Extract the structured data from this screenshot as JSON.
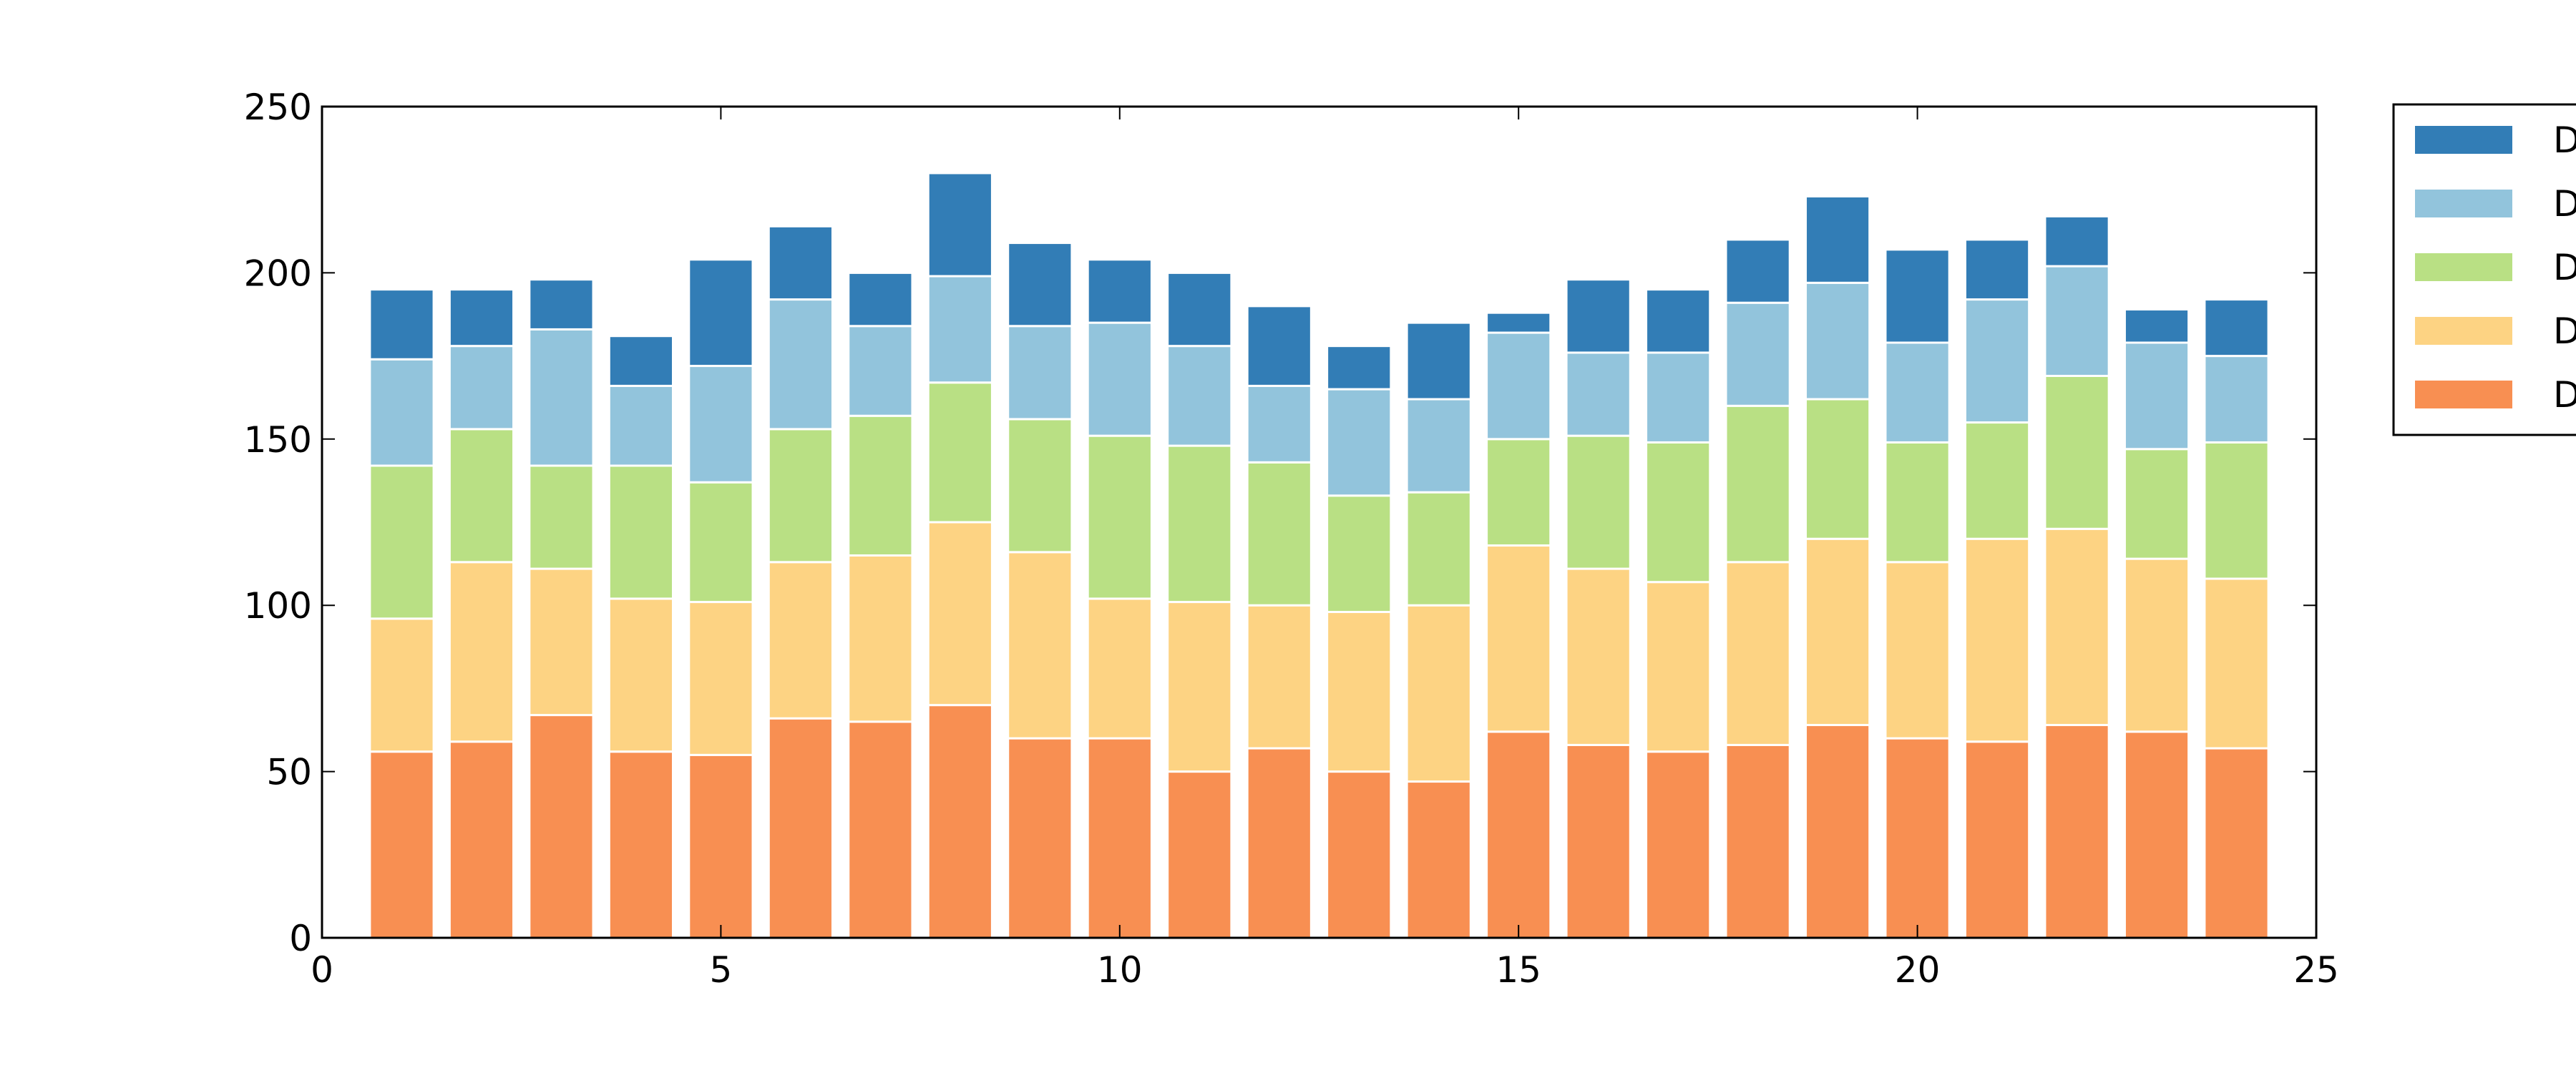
{
  "chart_data": {
    "type": "bar",
    "stacked": true,
    "title": "",
    "xlabel": "",
    "ylabel": "",
    "xlim": [
      0,
      25
    ],
    "ylim": [
      0,
      250
    ],
    "xticks": [
      "0",
      "5",
      "10",
      "15",
      "20",
      "25"
    ],
    "yticks": [
      "0",
      "50",
      "100",
      "150",
      "200",
      "250"
    ],
    "grid": false,
    "legend_position": "outside-right",
    "x": [
      1,
      2,
      3,
      4,
      5,
      6,
      7,
      8,
      9,
      10,
      11,
      12,
      13,
      14,
      15,
      16,
      17,
      18,
      19,
      20,
      21,
      22,
      23,
      24
    ],
    "series": [
      {
        "name": "D",
        "color": "#f88f52",
        "values": [
          56,
          59,
          67,
          56,
          55,
          66,
          65,
          70,
          60,
          60,
          50,
          57,
          50,
          47,
          62,
          58,
          56,
          58,
          64,
          60,
          59,
          64,
          62,
          57
        ]
      },
      {
        "name": "D",
        "color": "#fdd383",
        "values": [
          40,
          54,
          44,
          46,
          46,
          47,
          50,
          55,
          56,
          42,
          51,
          43,
          48,
          53,
          56,
          53,
          51,
          55,
          56,
          53,
          61,
          59,
          52,
          51
        ]
      },
      {
        "name": "D",
        "color": "#b9e084",
        "values": [
          46,
          40,
          31,
          40,
          36,
          40,
          42,
          42,
          40,
          49,
          47,
          43,
          35,
          34,
          32,
          40,
          42,
          47,
          42,
          36,
          35,
          46,
          33,
          41
        ]
      },
      {
        "name": "D",
        "color": "#92c4dc",
        "values": [
          32,
          25,
          41,
          24,
          35,
          39,
          27,
          32,
          28,
          34,
          30,
          23,
          32,
          28,
          32,
          25,
          27,
          31,
          35,
          30,
          37,
          33,
          32,
          26
        ]
      },
      {
        "name": "D",
        "color": "#327db6",
        "values": [
          21,
          17,
          15,
          15,
          32,
          22,
          16,
          31,
          25,
          19,
          22,
          24,
          13,
          23,
          6,
          22,
          19,
          19,
          26,
          28,
          18,
          15,
          10,
          17
        ]
      }
    ]
  }
}
